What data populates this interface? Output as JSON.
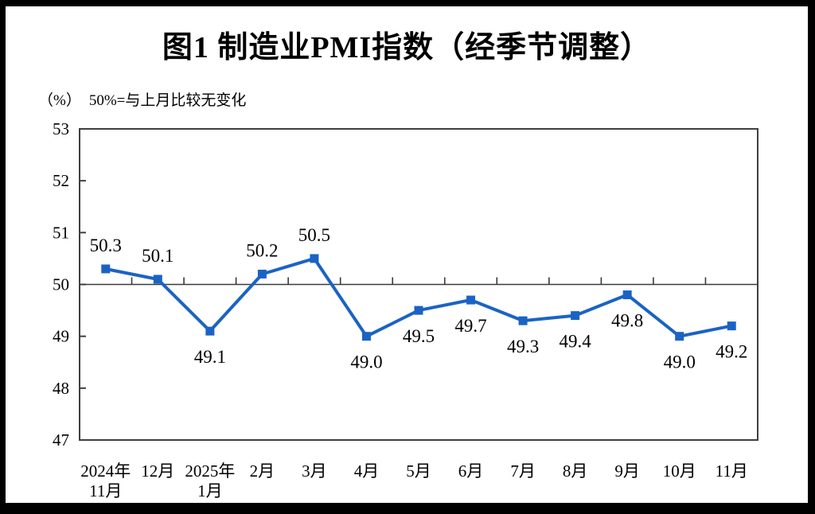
{
  "title": "图1  制造业PMI指数（经季节调整）",
  "subtitle": {
    "unit": "（%）",
    "note": "50%=与上月比较无变化"
  },
  "chart_data": {
    "type": "line",
    "title": "图1  制造业PMI指数（经季节调整）",
    "unit_note": "（%） 50%=与上月比较无变化",
    "categories": [
      [
        "2024年",
        "11月"
      ],
      [
        "12月"
      ],
      [
        "2025年",
        "1月"
      ],
      [
        "2月"
      ],
      [
        "3月"
      ],
      [
        "4月"
      ],
      [
        "5月"
      ],
      [
        "6月"
      ],
      [
        "7月"
      ],
      [
        "8月"
      ],
      [
        "9月"
      ],
      [
        "10月"
      ],
      [
        "11月"
      ]
    ],
    "series": [
      {
        "name": "制造业PMI指数（经季节调整）",
        "values": [
          50.3,
          50.1,
          49.1,
          50.2,
          50.5,
          49.0,
          49.5,
          49.7,
          49.3,
          49.4,
          49.8,
          49.0,
          49.2
        ]
      }
    ],
    "ylim": [
      47,
      53
    ],
    "ytick_step": 1,
    "reference_line": 50,
    "grid": false,
    "legend_position": "none",
    "data_label_decimals": 1,
    "colors": {
      "line": "#1a63c4",
      "marker": "#1a63c4",
      "axis": "#3f3f3f",
      "reference_line": "#3a3a3a",
      "text": "#000000",
      "background": "#ffffff",
      "frame": "#000000"
    }
  }
}
